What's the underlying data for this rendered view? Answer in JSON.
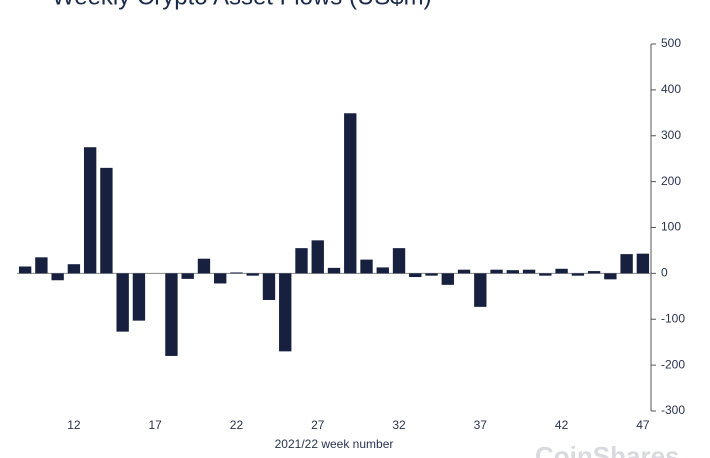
{
  "chart_data": {
    "type": "bar",
    "title": "Weekly Crypto Asset Flows (US$m)",
    "x_label": "2021/22 week number",
    "watermark": "CoinShares",
    "categories": [
      null,
      null,
      null,
      "12",
      null,
      null,
      null,
      null,
      "17",
      null,
      null,
      null,
      null,
      "22",
      null,
      null,
      null,
      null,
      "27",
      null,
      null,
      null,
      null,
      "32",
      null,
      null,
      null,
      null,
      "37",
      null,
      null,
      null,
      null,
      "42",
      null,
      null,
      null,
      null,
      "47"
    ],
    "values": [
      15,
      35,
      -15,
      20,
      275,
      230,
      -127,
      -103,
      0,
      -180,
      -12,
      32,
      -22,
      2,
      -5,
      -58,
      -170,
      55,
      72,
      12,
      349,
      30,
      13,
      55,
      -8,
      -5,
      -25,
      8,
      -73,
      8,
      7,
      8,
      -5,
      10,
      -5,
      5,
      -13,
      42,
      43
    ],
    "color": "#17213f",
    "ylim": [
      -300,
      500
    ],
    "yticks": [
      -300,
      -200,
      -100,
      0,
      100,
      200,
      300,
      400,
      500
    ],
    "y_axis_side": "right",
    "grid": false
  }
}
